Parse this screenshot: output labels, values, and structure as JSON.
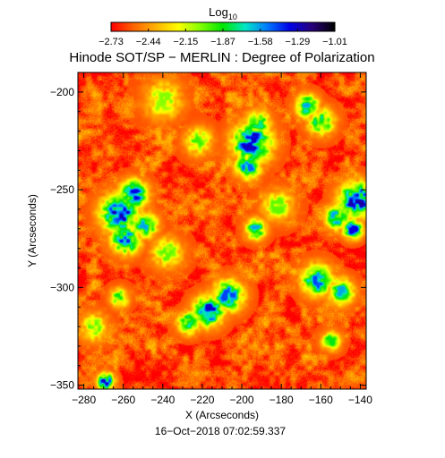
{
  "chart_data": {
    "type": "heatmap",
    "title": "Hinode SOT/SP − MERLIN : Degree of Polarization",
    "xlabel": "X (Arcseconds)",
    "ylabel": "Y (Arcseconds)",
    "timestamp": "16−Oct−2018 07:02:59.337",
    "colorbar": {
      "title_base": "Log",
      "title_sub": "10",
      "ticks": [
        "−2.73",
        "−2.44",
        "−2.15",
        "−1.87",
        "−1.58",
        "−1.29",
        "−1.01"
      ],
      "range": [
        -2.73,
        -1.01
      ],
      "colors": [
        "#ff0000",
        "#ff6400",
        "#ffb400",
        "#ffff00",
        "#80ff00",
        "#00e600",
        "#00e6c8",
        "#0078ff",
        "#0000e6",
        "#2a007a",
        "#000000"
      ]
    },
    "xlim": [
      -283,
      -137
    ],
    "ylim": [
      -352,
      -190
    ],
    "xticks": [
      -280,
      -260,
      -240,
      -220,
      -200,
      -180,
      -160,
      -140
    ],
    "yticks": [
      -200,
      -250,
      -300,
      -350
    ],
    "xtick_labels": [
      "−280",
      "−260",
      "−240",
      "−220",
      "−200",
      "−180",
      "−160",
      "−140"
    ],
    "ytick_labels": [
      "−200",
      "−250",
      "−300",
      "−350"
    ],
    "background_level": -2.6,
    "features": [
      {
        "x": -262,
        "y": -262,
        "level": -1.25
      },
      {
        "x": -255,
        "y": -252,
        "level": -1.35
      },
      {
        "x": -259,
        "y": -275,
        "level": -1.4
      },
      {
        "x": -249,
        "y": -268,
        "level": -1.6
      },
      {
        "x": -217,
        "y": -312,
        "level": -1.3
      },
      {
        "x": -207,
        "y": -304,
        "level": -1.45
      },
      {
        "x": -227,
        "y": -318,
        "level": -1.6
      },
      {
        "x": -195,
        "y": -226,
        "level": -1.3
      },
      {
        "x": -197,
        "y": -238,
        "level": -1.5
      },
      {
        "x": -192,
        "y": -216,
        "level": -1.75
      },
      {
        "x": -167,
        "y": -207,
        "level": -1.6
      },
      {
        "x": -160,
        "y": -215,
        "level": -1.75
      },
      {
        "x": -142,
        "y": -255,
        "level": -1.25
      },
      {
        "x": -144,
        "y": -270,
        "level": -1.35
      },
      {
        "x": -152,
        "y": -264,
        "level": -1.6
      },
      {
        "x": -162,
        "y": -296,
        "level": -1.45
      },
      {
        "x": -150,
        "y": -302,
        "level": -1.6
      },
      {
        "x": -193,
        "y": -270,
        "level": -1.6
      },
      {
        "x": -269,
        "y": -348,
        "level": -1.3
      },
      {
        "x": -262,
        "y": -305,
        "level": -1.85
      },
      {
        "x": -222,
        "y": -225,
        "level": -1.95
      },
      {
        "x": -182,
        "y": -258,
        "level": -2.0
      },
      {
        "x": -238,
        "y": -282,
        "level": -2.0
      },
      {
        "x": -155,
        "y": -327,
        "level": -1.85
      },
      {
        "x": -240,
        "y": -204,
        "level": -2.05
      },
      {
        "x": -275,
        "y": -320,
        "level": -2.0
      }
    ]
  }
}
